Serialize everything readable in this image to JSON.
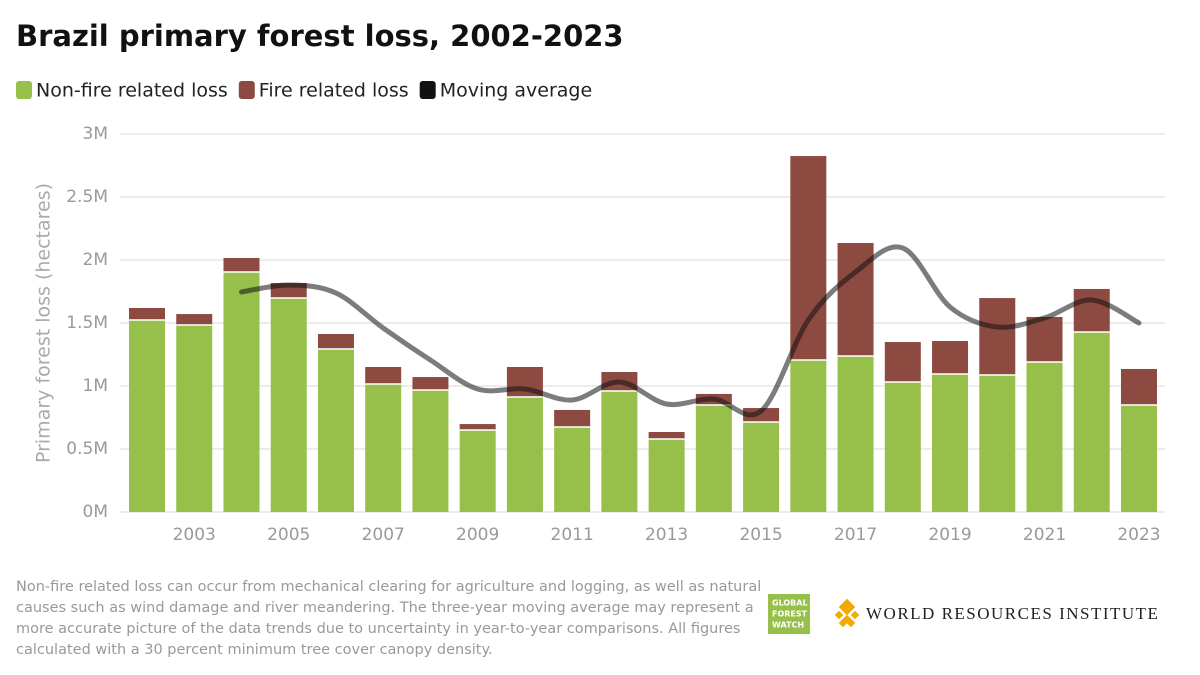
{
  "chart_data": {
    "type": "bar",
    "stacked": true,
    "title": "Brazil primary forest loss, 2002-2023",
    "y_label": "Primary forest loss (hectares)",
    "categories": [
      null,
      "2003",
      null,
      "2005",
      null,
      "2007",
      null,
      "2009",
      null,
      "2011",
      null,
      "2013",
      null,
      "2015",
      null,
      "2017",
      null,
      "2019",
      null,
      "2021",
      null,
      "2023"
    ],
    "series": [
      {
        "name": "Non-fire related loss",
        "color": "#97c04a",
        "values": [
          1524000,
          1484000,
          1905000,
          1698000,
          1294000,
          1016000,
          968000,
          651000,
          913000,
          675000,
          960000,
          579000,
          849000,
          714000,
          1206000,
          1238000,
          1032000,
          1095000,
          1087000,
          1190000,
          1429000,
          849000
        ]
      },
      {
        "name": "Fire related loss",
        "color": "#8c4a40",
        "values": [
          95000,
          87000,
          111000,
          119000,
          119000,
          135000,
          103000,
          47000,
          238000,
          135000,
          151000,
          56000,
          88000,
          111000,
          1619000,
          897000,
          317000,
          262000,
          611000,
          358000,
          341000,
          286000
        ]
      },
      {
        "name": "Moving average",
        "type": "line",
        "color": "#111111",
        "values": [
          null,
          null,
          1746000,
          1802000,
          1738000,
          1460000,
          1206000,
          976000,
          976000,
          889000,
          1032000,
          857000,
          897000,
          802000,
          1524000,
          1905000,
          2095000,
          1627000,
          1468000,
          1540000,
          1683000,
          1500000
        ]
      }
    ],
    "ylim": [
      0,
      3000000
    ],
    "yticks": [
      {
        "value": 0,
        "label": "0M"
      },
      {
        "value": 500000,
        "label": "0.5M"
      },
      {
        "value": 1000000,
        "label": "1M"
      },
      {
        "value": 1500000,
        "label": "1.5M"
      },
      {
        "value": 2000000,
        "label": "2M"
      },
      {
        "value": 2500000,
        "label": "2.5M"
      },
      {
        "value": 3000000,
        "label": "3M"
      }
    ],
    "grid": true,
    "note": [
      "Non-fire related loss can occur from mechanical clearing for agriculture and logging, as well as natural",
      "causes such as wind damage and river meandering. The three-year moving average may represent a",
      "more accurate picture of the data trends due to uncertainty in year-to-year comparisons. All figures",
      "calculated with a 30 percent minimum tree cover canopy density."
    ],
    "gfw_logo": [
      "GLOBAL",
      "FOREST",
      "WATCH"
    ],
    "wri_logo": "WORLD RESOURCES INSTITUTE"
  }
}
